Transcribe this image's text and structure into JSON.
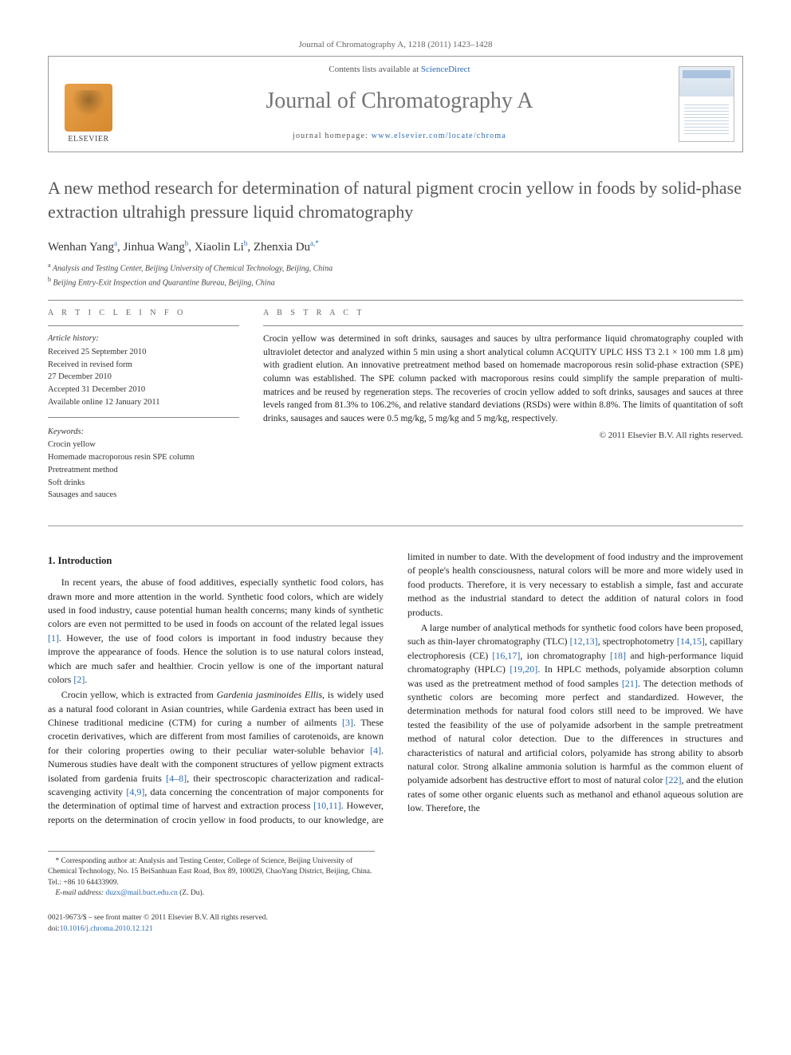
{
  "citation": "Journal of Chromatography A, 1218 (2011) 1423–1428",
  "header": {
    "contents_prefix": "Contents lists available at ",
    "contents_link": "ScienceDirect",
    "journal_name": "Journal of Chromatography A",
    "homepage_prefix": "journal homepage: ",
    "homepage_url": "www.elsevier.com/locate/chroma",
    "publisher": "ELSEVIER"
  },
  "title": "A new method research for determination of natural pigment crocin yellow in foods by solid-phase extraction ultrahigh pressure liquid chromatography",
  "authors_html": "Wenhan Yang<sup>a</sup>, Jinhua Wang<sup>b</sup>, Xiaolin Li<sup>b</sup>, Zhenxia Du<sup>a,*</sup>",
  "affiliations": {
    "a": "Analysis and Testing Center, Beijing University of Chemical Technology, Beijing, China",
    "b": "Beijing Entry-Exit Inspection and Quarantine Bureau, Beijing, China"
  },
  "info": {
    "heading": "A R T I C L E   I N F O",
    "history_label": "Article history:",
    "history": [
      "Received 25 September 2010",
      "Received in revised form",
      "27 December 2010",
      "Accepted 31 December 2010",
      "Available online 12 January 2011"
    ],
    "keywords_label": "Keywords:",
    "keywords": [
      "Crocin yellow",
      "Homemade macroporous resin SPE column",
      "Pretreatment method",
      "Soft drinks",
      "Sausages and sauces"
    ]
  },
  "abstract": {
    "heading": "A B S T R A C T",
    "text": "Crocin yellow was determined in soft drinks, sausages and sauces by ultra performance liquid chromatography coupled with ultraviolet detector and analyzed within 5 min using a short analytical column ACQUITY UPLC HSS T3 2.1 × 100 mm 1.8 µm) with gradient elution. An innovative pretreatment method based on homemade macroporous resin solid-phase extraction (SPE) column was established. The SPE column packed with macroporous resins could simplify the sample preparation of multi-matrices and be reused by regeneration steps. The recoveries of crocin yellow added to soft drinks, sausages and sauces at three levels ranged from 81.3% to 106.2%, and relative standard deviations (RSDs) were within 8.8%. The limits of quantitation of soft drinks, sausages and sauces were 0.5 mg/kg, 5 mg/kg and 5 mg/kg, respectively.",
    "copyright": "© 2011 Elsevier B.V. All rights reserved."
  },
  "body": {
    "section_number": "1.",
    "section_title": "Introduction",
    "p1": "In recent years, the abuse of food additives, especially synthetic food colors, has drawn more and more attention in the world. Synthetic food colors, which are widely used in food industry, cause potential human health concerns; many kinds of synthetic colors are even not permitted to be used in foods on account of the related legal issues [1]. However, the use of food colors is important in food industry because they improve the appearance of foods. Hence the solution is to use natural colors instead, which are much safer and healthier. Crocin yellow is one of the important natural colors [2].",
    "p2": "Crocin yellow, which is extracted from Gardenia jasminoides Ellis, is widely used as a natural food colorant in Asian countries, while Gardenia extract has been used in Chinese traditional medicine (CTM) for curing a number of ailments [3]. These crocetin derivatives, which are different from most families of carotenoids, are known for their coloring properties owing to their peculiar water-soluble behavior [4]. Numerous studies have dealt with the component structures of yellow pigment extracts isolated from gardenia fruits [4–8], their spectroscopic characterization and radical-scavenging activity [4,9], data concerning the concentration of major components for the determination of optimal time of harvest and extraction process [10,11]. However, reports on the determination of crocin yellow in food products, to our knowledge, are limited in number to date. With the development of food industry and the improvement of people's health consciousness, natural colors will be more and more widely used in food products. Therefore, it is very necessary to establish a simple, fast and accurate method as the industrial standard to detect the addition of natural colors in food products.",
    "p3": "A large number of analytical methods for synthetic food colors have been proposed, such as thin-layer chromatography (TLC) [12,13], spectrophotometry [14,15], capillary electrophoresis (CE) [16,17], ion chromatography [18] and high-performance liquid chromatography (HPLC) [19,20]. In HPLC methods, polyamide absorption column was used as the pretreatment method of food samples [21]. The detection methods of synthetic colors are becoming more perfect and standardized. However, the determination methods for natural food colors still need to be improved. We have tested the feasibility of the use of polyamide adsorbent in the sample pretreatment method of natural color detection. Due to the differences in structures and characteristics of natural and artificial colors, polyamide has strong ability to absorb natural color. Strong alkaline ammonia solution is harmful as the common eluent of polyamide adsorbent has destructive effort to most of natural color [22], and the elution rates of some other organic eluents such as methanol and ethanol aqueous solution are low. Therefore, the"
  },
  "footnotes": {
    "corr": "Corresponding author at: Analysis and Testing Center, College of Science, Beijing University of Chemical Technology, No. 15 BeiSanhuan East Road, Box 89, 100029, ChaoYang District, Beijing, China. Tel.: +86 10 64433909.",
    "email_label": "E-mail address:",
    "email": "duzx@mail.buct.edu.cn",
    "email_person": "(Z. Du)."
  },
  "footer": {
    "line1": "0021-9673/$ – see front matter © 2011 Elsevier B.V. All rights reserved.",
    "doi_label": "doi:",
    "doi": "10.1016/j.chroma.2010.12.121"
  },
  "colors": {
    "link": "#2a6ab5",
    "title_gray": "#555555",
    "rule": "#888888"
  }
}
